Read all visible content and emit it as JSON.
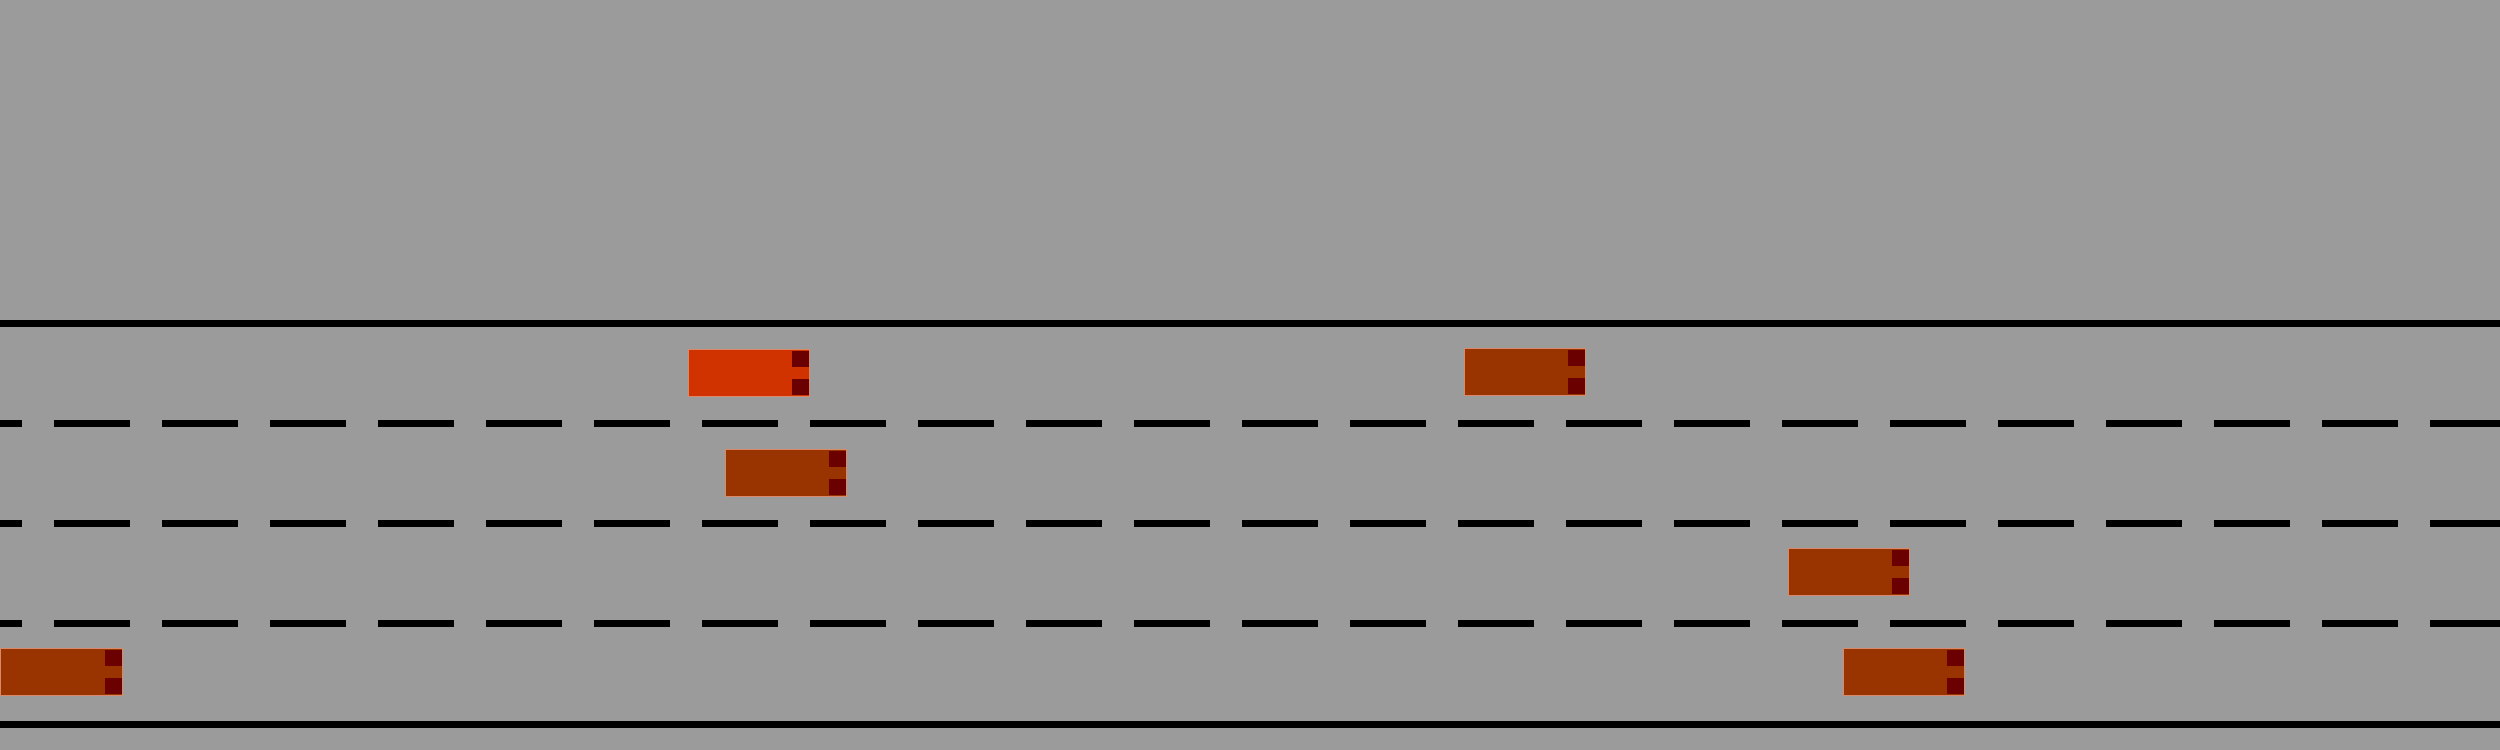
{
  "scene": {
    "background_color": "#9b9b9b",
    "road_line_color": "#000000",
    "lane_count": 4
  },
  "vehicles": [
    {
      "id": "ego",
      "role": "ego-car",
      "lane": 1,
      "color": "#d03300",
      "light_color": "#6b0000"
    },
    {
      "id": "car-2",
      "role": "traffic-car",
      "lane": 1,
      "color": "#993300",
      "light_color": "#6b0000"
    },
    {
      "id": "car-3",
      "role": "traffic-car",
      "lane": 2,
      "color": "#993300",
      "light_color": "#6b0000"
    },
    {
      "id": "car-4",
      "role": "traffic-car",
      "lane": 3,
      "color": "#993300",
      "light_color": "#6b0000"
    },
    {
      "id": "car-5",
      "role": "traffic-car",
      "lane": 4,
      "color": "#993300",
      "light_color": "#6b0000"
    },
    {
      "id": "car-6",
      "role": "traffic-car",
      "lane": 4,
      "color": "#993300",
      "light_color": "#6b0000"
    }
  ]
}
